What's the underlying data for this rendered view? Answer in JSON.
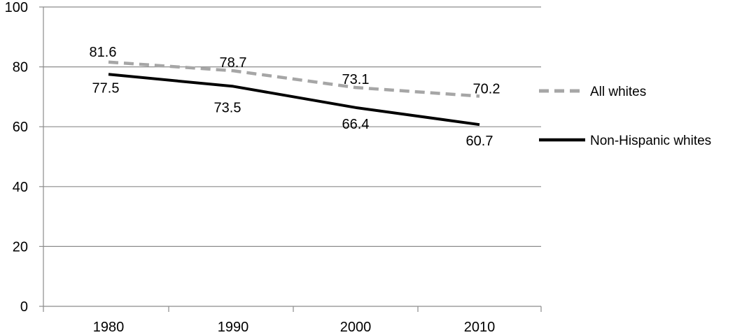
{
  "chart_data": {
    "type": "line",
    "title": "",
    "xlabel": "",
    "ylabel": "",
    "categories": [
      "1980",
      "1990",
      "2000",
      "2010"
    ],
    "ylim": [
      0,
      100
    ],
    "yticks": [
      0,
      20,
      40,
      60,
      80,
      100
    ],
    "grid": true,
    "legend_position": "right",
    "series": [
      {
        "name": "All whites",
        "values": [
          81.6,
          78.7,
          73.1,
          70.2
        ],
        "labels": [
          "81.6",
          "78.7",
          "73.1",
          "70.2"
        ],
        "color": "#a6a6a6",
        "style": "dashed"
      },
      {
        "name": "Non-Hispanic whites",
        "values": [
          77.5,
          73.5,
          66.4,
          60.7
        ],
        "labels": [
          "77.5",
          "73.5",
          "66.4",
          "60.7"
        ],
        "color": "#000000",
        "style": "solid"
      }
    ]
  }
}
